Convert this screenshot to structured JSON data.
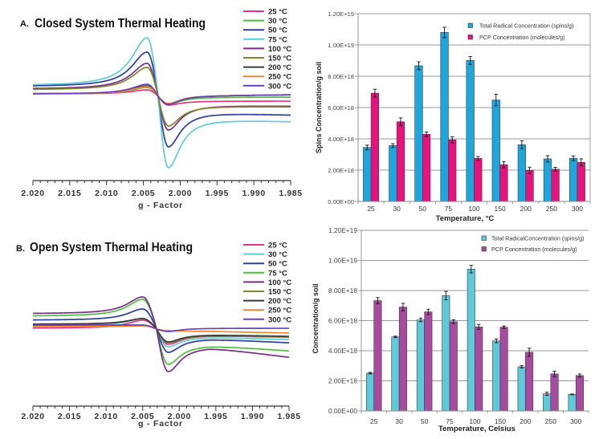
{
  "chart_data": [
    {
      "id": "A",
      "type": "line",
      "panel_label": "A.",
      "title": "Closed System Thermal Heating",
      "xlabel": "g - Factor",
      "ylabel": "",
      "xlim": [
        2.02,
        1.985
      ],
      "x_ticks": [
        2.02,
        2.015,
        2.01,
        2.005,
        2.0,
        1.995,
        1.99,
        1.985
      ],
      "x_tick_labels": [
        "2.020",
        "2.015",
        "2.010",
        "2.005",
        "2.000",
        "1.995",
        "1.990",
        "1.985"
      ],
      "x_minor_tick_step": 0.001,
      "y_units": "EPR signal intensity (arbitrary units, no y-axis shown)",
      "grid": false,
      "legend_position": "top-right",
      "signal_shape": {
        "peak_g": 2.0045,
        "crossing_g": 2.003,
        "trough_g": 2.0016
      },
      "series": [
        {
          "name": "25 °C",
          "color": "#e6338a",
          "baseline_left": 3,
          "peak": 8,
          "trough": -11,
          "baseline_right": -6,
          "end_value": -6
        },
        {
          "name": "30 °C",
          "color": "#4cbf3a",
          "baseline_left": 3,
          "peak": 11,
          "trough": -10,
          "baseline_right": -1,
          "end_value": -1
        },
        {
          "name": "50 °C",
          "color": "#2b3f9e",
          "baseline_left": 12,
          "peak": 55,
          "trough": -63,
          "baseline_right": -20,
          "end_value": -23
        },
        {
          "name": "75 °C",
          "color": "#5ccbda",
          "baseline_left": 13,
          "peak": 73,
          "trough": -89,
          "baseline_right": -28,
          "end_value": -31
        },
        {
          "name": "100 °C",
          "color": "#7b2a8c",
          "baseline_left": 9,
          "peak": 41,
          "trough": -42,
          "baseline_right": -11,
          "end_value": -12
        },
        {
          "name": "150 °C",
          "color": "#7a8a2a",
          "baseline_left": 8,
          "peak": 36,
          "trough": -37,
          "baseline_right": -12,
          "end_value": -13
        },
        {
          "name": "200 °C",
          "color": "#3a3a3a",
          "baseline_left": 3,
          "peak": 13,
          "trough": -9,
          "baseline_right": 1,
          "end_value": 2
        },
        {
          "name": "250 °C",
          "color": "#f0882a",
          "baseline_left": 3,
          "peak": 12,
          "trough": -9,
          "baseline_right": 1,
          "end_value": 2
        },
        {
          "name": "300 °C",
          "color": "#6a3fb8",
          "baseline_left": 3,
          "peak": 15,
          "trough": -10,
          "baseline_right": 1,
          "end_value": 2
        }
      ]
    },
    {
      "id": "B",
      "type": "line",
      "panel_label": "B.",
      "title": "Open System Thermal Heating",
      "xlabel": "g - Factor",
      "ylabel": "",
      "xlim": [
        2.02,
        1.985
      ],
      "x_ticks": [
        2.02,
        2.015,
        2.01,
        2.005,
        2.0,
        1.995,
        1.99,
        1.985
      ],
      "x_tick_labels": [
        "2.020",
        "2.015",
        "2.010",
        "2.005",
        "2.000",
        "1.995",
        "1.990",
        "1.985"
      ],
      "x_minor_tick_step": 0.001,
      "y_units": "EPR signal intensity (arbitrary units, no y-axis shown)",
      "grid": false,
      "legend_position": "top-right",
      "signal_shape": {
        "peak_g": 2.005,
        "crossing_g": 2.0031,
        "trough_g": 2.0015
      },
      "series": [
        {
          "name": "25 °C",
          "color": "#e6338a",
          "baseline_left": 1,
          "peak": 11,
          "trough": -19,
          "baseline_right": -8,
          "end_value": -10
        },
        {
          "name": "30 °C",
          "color": "#5ccbda",
          "baseline_left": 4,
          "peak": 13,
          "trough": -22,
          "baseline_right": -10,
          "end_value": -13
        },
        {
          "name": "50 °C",
          "color": "#2b3f9e",
          "baseline_left": 11,
          "peak": 25,
          "trough": -29,
          "baseline_right": -12,
          "end_value": -17
        },
        {
          "name": "75 °C",
          "color": "#4cbf3a",
          "baseline_left": 16,
          "peak": 37,
          "trough": -44,
          "baseline_right": -20,
          "end_value": -27
        },
        {
          "name": "100 °C",
          "color": "#7b2a8c",
          "baseline_left": 19,
          "peak": 40,
          "trough": -53,
          "baseline_right": -22,
          "end_value": -35
        },
        {
          "name": "150 °C",
          "color": "#7a8a2a",
          "baseline_left": 6,
          "peak": 13,
          "trough": -17,
          "baseline_right": -8,
          "end_value": -10
        },
        {
          "name": "200 °C",
          "color": "#3a3a3a",
          "baseline_left": 6,
          "peak": 13,
          "trough": -16,
          "baseline_right": -7,
          "end_value": -9
        },
        {
          "name": "250 °C",
          "color": "#f0882a",
          "baseline_left": 3,
          "peak": 4,
          "trough": -2,
          "baseline_right": -3,
          "end_value": -5
        },
        {
          "name": "300 °C",
          "color": "#6a3fb8",
          "baseline_left": 5,
          "peak": 5,
          "trough": -3,
          "baseline_right": 1,
          "end_value": 1
        }
      ]
    },
    {
      "id": "C",
      "type": "bar",
      "title": "",
      "xlabel": "Temperature, °C",
      "ylabel": "Spins Concentration/g soil",
      "categories": [
        "25",
        "30",
        "50",
        "75",
        "100",
        "150",
        "200",
        "250",
        "300"
      ],
      "ylim": [
        0,
        1.2e+19
      ],
      "y_ticks": [
        0,
        2e+18,
        4e+18,
        6e+18,
        8e+18,
        1e+19,
        1.2e+19
      ],
      "y_tick_labels": [
        "0.00E+00",
        "2.00E+18",
        "4.00E+18",
        "6.00E+18",
        "8.00E+18",
        "1.00E+19",
        "1.20E+19"
      ],
      "grid": true,
      "legend_position": "top-right",
      "series": [
        {
          "name": "Total Radical Concentration (spins/g)",
          "color": "#1ea7dd",
          "values": [
            3.45e+18,
            3.57e+18,
            8.67e+18,
            1.08e+19,
            9.01e+18,
            6.48e+18,
            3.62e+18,
            2.72e+18,
            2.76e+18
          ],
          "errors": [
            1.5e+17,
            1.2e+17,
            2.5e+17,
            3.3e+17,
            2.5e+17,
            3.7e+17,
            2.5e+17,
            2e+17,
            1.5e+17
          ]
        },
        {
          "name": "PCP Concentration (molecules/g)",
          "color": "#e8127c",
          "values": [
            6.92e+18,
            5.09e+18,
            4.29e+18,
            3.94e+18,
            2.75e+18,
            2.35e+18,
            1.99e+18,
            2.06e+18,
            2.5e+18
          ],
          "errors": [
            2.5e+17,
            2.5e+17,
            1.5e+17,
            2e+17,
            1.2e+17,
            2e+17,
            2e+17,
            1.2e+17,
            2.2e+17
          ]
        }
      ]
    },
    {
      "id": "D",
      "type": "bar",
      "title": "",
      "xlabel": "Temperature, Celsius",
      "ylabel": "Concentration/g soil",
      "categories": [
        "25",
        "30",
        "50",
        "75",
        "100",
        "150",
        "200",
        "250",
        "300"
      ],
      "ylim": [
        0,
        1.2e+19
      ],
      "y_ticks": [
        0,
        2e+18,
        4e+18,
        6e+18,
        8e+18,
        1e+19,
        1.2e+19
      ],
      "y_tick_labels": [
        "0.00E+00",
        "2.00E+18",
        "4.00E+18",
        "6.00E+18",
        "8.00E+18",
        "1.00E+19",
        "1.20E+19"
      ],
      "grid": true,
      "legend_position": "top-right",
      "series": [
        {
          "name": "Total RadicalConcentration (spins/g)",
          "color": "#5dc9d9",
          "values": [
            2.51e+18,
            4.92e+18,
            6.05e+18,
            7.66e+18,
            9.42e+18,
            4.65e+18,
            2.93e+18,
            1.14e+18,
            1.1e+18
          ],
          "errors": [
            5e+16,
            5e+16,
            1.2e+17,
            2.8e+17,
            2.5e+17,
            1.2e+17,
            8e+16,
            1e+17,
            2e+16
          ]
        },
        {
          "name": "PCP Concentration (molecules/g)",
          "color": "#a84aa0",
          "values": [
            7.33e+18,
            6.9e+18,
            6.58e+18,
            5.93e+18,
            5.58e+18,
            5.56e+18,
            3.9e+18,
            2.46e+18,
            2.35e+18
          ],
          "errors": [
            2e+17,
            2.5e+17,
            1.8e+17,
            1.2e+17,
            1.7e+17,
            8e+16,
            2.7e+17,
            1.8e+17,
            1e+17
          ]
        }
      ]
    }
  ]
}
